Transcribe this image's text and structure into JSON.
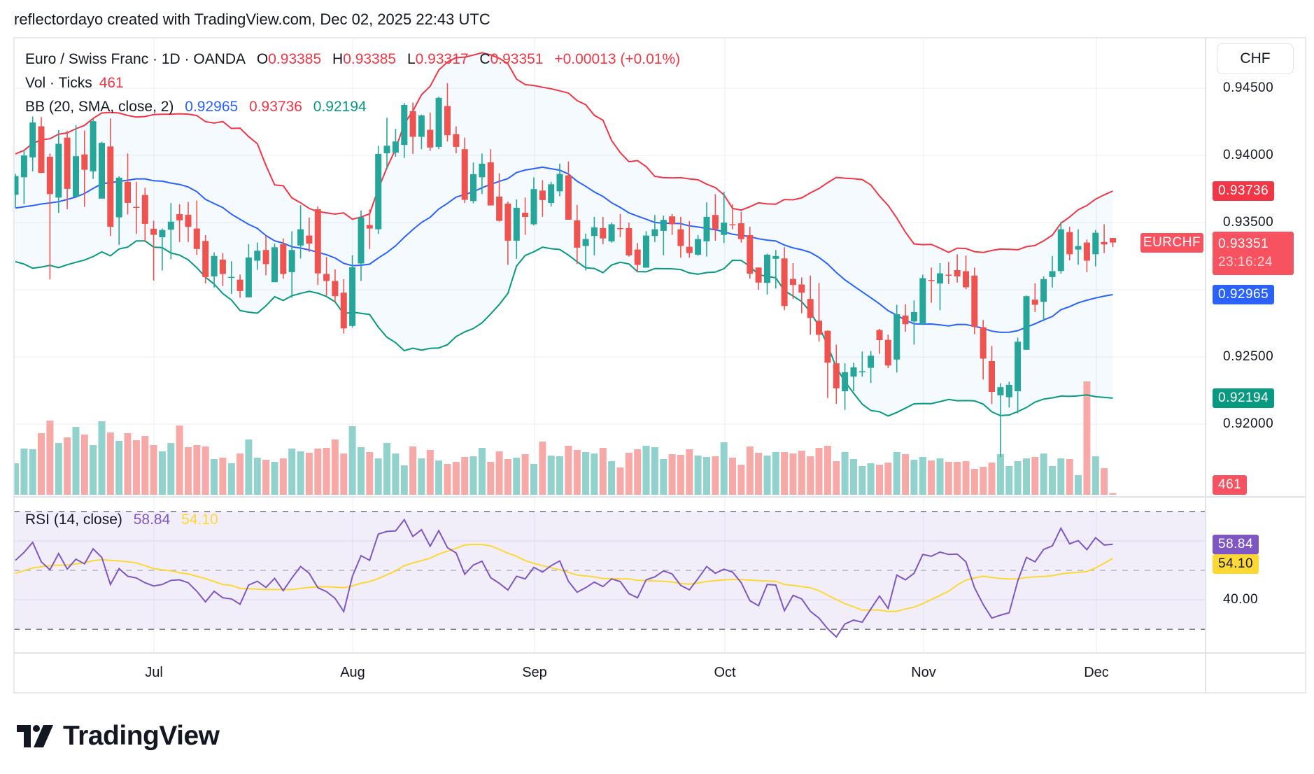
{
  "header": {
    "text": "reflectordayo created with TradingView.com, Dec 02, 2025 22:43 UTC"
  },
  "legend": {
    "symbol": "Euro / Swiss Franc · 1D · OANDA",
    "o_label": "O",
    "o": "0.93385",
    "h_label": "H",
    "h": "0.93385",
    "l_label": "L",
    "l": "0.93317",
    "c_label": "C",
    "c": "0.93351",
    "change": "+0.00013 (+0.01%)",
    "vol_label": "Vol · Ticks",
    "vol": "461",
    "bb_label": "BB (20, SMA, close, 2)",
    "bb_basis": "0.92965",
    "bb_upper": "0.93736",
    "bb_lower": "0.92194",
    "rsi_label": "RSI (14, close)",
    "rsi": "58.84",
    "rsi_ma": "54.10"
  },
  "price_axis": {
    "currency_button": "CHF",
    "ticks": [
      "0.94500",
      "0.94000",
      "0.93500",
      "0.92500",
      "0.92000"
    ],
    "tick_values": [
      0.945,
      0.94,
      0.935,
      0.925,
      0.92
    ],
    "labels": {
      "bb_upper": {
        "text": "0.93736",
        "value": 0.93736,
        "color": "#f23645"
      },
      "current": {
        "text": "0.93351",
        "countdown": "23:16:24",
        "value": 0.93351,
        "color": "#f7525f"
      },
      "symbol_tag": "EURCHF",
      "bb_basis": {
        "text": "0.92965",
        "value": 0.92965,
        "color": "#2962ff"
      },
      "bb_lower": {
        "text": "0.92194",
        "value": 0.92194,
        "color": "#089981"
      },
      "volume": {
        "text": "461",
        "color": "#f7525f"
      }
    }
  },
  "rsi_axis": {
    "ticks": [
      "40.00"
    ],
    "tick_values": [
      40
    ],
    "rsi_label": {
      "text": "58.84",
      "value": 58.84,
      "color": "#7e57c2"
    },
    "ma_label": {
      "text": "54.10",
      "value": 54.1,
      "color": "#fdd835"
    },
    "bands": [
      70,
      50,
      30
    ]
  },
  "time_axis": {
    "months": [
      "Jul",
      "Aug",
      "Sep",
      "Oct",
      "Nov",
      "Dec"
    ]
  },
  "logo": {
    "text": "TradingView"
  },
  "colors": {
    "up": "#26a69a",
    "down": "#ef5350",
    "vol_up": "#92d2cc",
    "vol_down": "#f7a9a7",
    "bb_upper": "#f23645",
    "bb_basis": "#2962ff",
    "bb_lower": "#089981",
    "rsi": "#7e57c2",
    "rsi_ma": "#fdd835"
  },
  "chart_data": {
    "type": "candlestick",
    "symbol": "EURCHF",
    "interval": "1D",
    "ylim": [
      0.9165,
      0.9495
    ],
    "grid": true,
    "ohlc": [
      [
        0.93707,
        0.93863,
        0.93612,
        0.93846
      ],
      [
        0.93837,
        0.94037,
        0.93638,
        0.93999
      ],
      [
        0.93985,
        0.94289,
        0.93881,
        0.94245
      ],
      [
        0.94216,
        0.94285,
        0.93869,
        0.93869
      ],
      [
        0.9399,
        0.94014,
        0.93077,
        0.93712
      ],
      [
        0.93686,
        0.94188,
        0.93572,
        0.94086
      ],
      [
        0.94132,
        0.94181,
        0.93599,
        0.93751
      ],
      [
        0.93693,
        0.94224,
        0.93693,
        0.93994
      ],
      [
        0.94007,
        0.94185,
        0.93617,
        0.93893
      ],
      [
        0.93881,
        0.94271,
        0.93825,
        0.94254
      ],
      [
        0.93678,
        0.94101,
        0.93678,
        0.94093
      ],
      [
        0.94066,
        0.94275,
        0.934,
        0.93468
      ],
      [
        0.93539,
        0.93843,
        0.93334,
        0.93834
      ],
      [
        0.93803,
        0.94014,
        0.9356,
        0.93646
      ],
      [
        0.93617,
        0.93803,
        0.93415,
        0.93612
      ],
      [
        0.93705,
        0.93759,
        0.93355,
        0.9349
      ],
      [
        0.93454,
        0.93514,
        0.93068,
        0.93408
      ],
      [
        0.93391,
        0.93455,
        0.93143,
        0.93445
      ],
      [
        0.93447,
        0.93645,
        0.93226,
        0.93507
      ],
      [
        0.93563,
        0.93636,
        0.93355,
        0.93516
      ],
      [
        0.93558,
        0.93653,
        0.93355,
        0.93468
      ],
      [
        0.93455,
        0.93664,
        0.93259,
        0.93303
      ],
      [
        0.93363,
        0.93407,
        0.93047,
        0.93094
      ],
      [
        0.93099,
        0.93278,
        0.93016,
        0.93251
      ],
      [
        0.93224,
        0.93273,
        0.93027,
        0.93117
      ],
      [
        0.93091,
        0.93212,
        0.92969,
        0.93096
      ],
      [
        0.93075,
        0.93113,
        0.9294,
        0.9299
      ],
      [
        0.92943,
        0.93339,
        0.92943,
        0.9324
      ],
      [
        0.93216,
        0.93351,
        0.93148,
        0.9329
      ],
      [
        0.93296,
        0.93403,
        0.93108,
        0.93191
      ],
      [
        0.93056,
        0.93343,
        0.93056,
        0.93316
      ],
      [
        0.93339,
        0.93382,
        0.93082,
        0.93117
      ],
      [
        0.93131,
        0.93435,
        0.9294,
        0.93296
      ],
      [
        0.93329,
        0.93629,
        0.93233,
        0.9345
      ],
      [
        0.93403,
        0.93537,
        0.93282,
        0.93343
      ],
      [
        0.93599,
        0.9362,
        0.93035,
        0.93122
      ],
      [
        0.93117,
        0.93244,
        0.92955,
        0.93065
      ],
      [
        0.93065,
        0.93152,
        0.92908,
        0.92952
      ],
      [
        0.92978,
        0.93079,
        0.92674,
        0.92712
      ],
      [
        0.9273,
        0.93256,
        0.92718,
        0.93167
      ],
      [
        0.93195,
        0.93589,
        0.93065,
        0.93539
      ],
      [
        0.93481,
        0.93598,
        0.93303,
        0.93455
      ],
      [
        0.9345,
        0.94072,
        0.93415,
        0.94011
      ],
      [
        0.94016,
        0.9428,
        0.93898,
        0.94072
      ],
      [
        0.9402,
        0.94198,
        0.9399,
        0.94103
      ],
      [
        0.94077,
        0.94389,
        0.93981,
        0.94375
      ],
      [
        0.94329,
        0.94393,
        0.94011,
        0.94138
      ],
      [
        0.94138,
        0.94303,
        0.94046,
        0.94297
      ],
      [
        0.9419,
        0.94318,
        0.94033,
        0.94058
      ],
      [
        0.94063,
        0.94436,
        0.94046,
        0.94428
      ],
      [
        0.94367,
        0.94537,
        0.94103,
        0.9415
      ],
      [
        0.94158,
        0.94216,
        0.94016,
        0.94063
      ],
      [
        0.94046,
        0.94132,
        0.93646,
        0.93669
      ],
      [
        0.9366,
        0.93947,
        0.93643,
        0.9386
      ],
      [
        0.93837,
        0.94014,
        0.93712,
        0.93938
      ],
      [
        0.93948,
        0.94046,
        0.93627,
        0.93627
      ],
      [
        0.93693,
        0.93867,
        0.93507,
        0.93513
      ],
      [
        0.93641,
        0.93655,
        0.93185,
        0.93365
      ],
      [
        0.93365,
        0.93672,
        0.9323,
        0.9361
      ],
      [
        0.93573,
        0.93686,
        0.93408,
        0.93542
      ],
      [
        0.93487,
        0.93836,
        0.93478,
        0.93749
      ],
      [
        0.93738,
        0.93815,
        0.93542,
        0.93667
      ],
      [
        0.93646,
        0.93803,
        0.9362,
        0.93785
      ],
      [
        0.93733,
        0.93938,
        0.93695,
        0.93862
      ],
      [
        0.93851,
        0.93954,
        0.93521,
        0.93521
      ],
      [
        0.93516,
        0.93632,
        0.93191,
        0.93313
      ],
      [
        0.93325,
        0.93417,
        0.93143,
        0.93377
      ],
      [
        0.934,
        0.93542,
        0.93256,
        0.93464
      ],
      [
        0.93459,
        0.93542,
        0.93339,
        0.93382
      ],
      [
        0.9336,
        0.93499,
        0.93351,
        0.93487
      ],
      [
        0.93459,
        0.93563,
        0.93391,
        0.93454
      ],
      [
        0.93459,
        0.93499,
        0.93247,
        0.93256
      ],
      [
        0.93299,
        0.93348,
        0.93129,
        0.93185
      ],
      [
        0.93164,
        0.93435,
        0.93164,
        0.93403
      ],
      [
        0.934,
        0.93556,
        0.93355,
        0.9345
      ],
      [
        0.93438,
        0.93551,
        0.93256,
        0.9352
      ],
      [
        0.93546,
        0.93563,
        0.93408,
        0.93487
      ],
      [
        0.9345,
        0.93542,
        0.93238,
        0.93325
      ],
      [
        0.9332,
        0.93511,
        0.93238,
        0.93273
      ],
      [
        0.93261,
        0.93407,
        0.93252,
        0.93377
      ],
      [
        0.9336,
        0.9365,
        0.93247,
        0.93542
      ],
      [
        0.93556,
        0.93711,
        0.93365,
        0.9345
      ],
      [
        0.93408,
        0.93728,
        0.93348,
        0.93499
      ],
      [
        0.93487,
        0.93636,
        0.9345,
        0.93481
      ],
      [
        0.93495,
        0.9358,
        0.93351,
        0.93377
      ],
      [
        0.93407,
        0.93469,
        0.93082,
        0.9312
      ],
      [
        0.93165,
        0.93165,
        0.93,
        0.93053
      ],
      [
        0.93051,
        0.93268,
        0.92964,
        0.93261
      ],
      [
        0.9323,
        0.93296,
        0.93009,
        0.93251
      ],
      [
        0.93233,
        0.93316,
        0.92848,
        0.92879
      ],
      [
        0.9308,
        0.93198,
        0.92931,
        0.93035
      ],
      [
        0.93039,
        0.93091,
        0.92825,
        0.92978
      ],
      [
        0.92931,
        0.93105,
        0.92665,
        0.9279
      ],
      [
        0.9277,
        0.93051,
        0.92613,
        0.92665
      ],
      [
        0.92695,
        0.92697,
        0.92193,
        0.92457
      ],
      [
        0.92452,
        0.92591,
        0.9215,
        0.92266
      ],
      [
        0.92245,
        0.92452,
        0.92106,
        0.92386
      ],
      [
        0.92353,
        0.92457,
        0.92245,
        0.92422
      ],
      [
        0.92386,
        0.9254,
        0.92353,
        0.92393
      ],
      [
        0.92419,
        0.92544,
        0.92306,
        0.92509
      ],
      [
        0.927,
        0.92709,
        0.92523,
        0.92625
      ],
      [
        0.92627,
        0.92665,
        0.92417,
        0.92436
      ],
      [
        0.9248,
        0.92888,
        0.92384,
        0.92818
      ],
      [
        0.92808,
        0.92891,
        0.92688,
        0.92744
      ],
      [
        0.92764,
        0.92921,
        0.92591,
        0.92834
      ],
      [
        0.92744,
        0.93112,
        0.92744,
        0.93086
      ],
      [
        0.93073,
        0.93165,
        0.92903,
        0.93065
      ],
      [
        0.93047,
        0.93198,
        0.92848,
        0.93122
      ],
      [
        0.93112,
        0.93207,
        0.93042,
        0.93105
      ],
      [
        0.93146,
        0.93264,
        0.93053,
        0.93099
      ],
      [
        0.93138,
        0.93254,
        0.93004,
        0.93018
      ],
      [
        0.93105,
        0.93165,
        0.92669,
        0.92723
      ],
      [
        0.92721,
        0.92775,
        0.92332,
        0.92487
      ],
      [
        0.92469,
        0.92582,
        0.9215,
        0.9224
      ],
      [
        0.92214,
        0.92304,
        0.91755,
        0.92275
      ],
      [
        0.922,
        0.92315,
        0.92124,
        0.92292
      ],
      [
        0.92245,
        0.92643,
        0.92079,
        0.92613
      ],
      [
        0.92553,
        0.92957,
        0.92553,
        0.92952
      ],
      [
        0.92926,
        0.93047,
        0.92834,
        0.92888
      ],
      [
        0.92909,
        0.93099,
        0.92766,
        0.93079
      ],
      [
        0.93094,
        0.93251,
        0.93016,
        0.93138
      ],
      [
        0.93139,
        0.93507,
        0.9312,
        0.9345
      ],
      [
        0.93429,
        0.93468,
        0.93218,
        0.93264
      ],
      [
        0.93299,
        0.9345,
        0.93186,
        0.93325
      ],
      [
        0.93351,
        0.93374,
        0.93131,
        0.93216
      ],
      [
        0.93264,
        0.93445,
        0.93174,
        0.93424
      ],
      [
        0.93355,
        0.93487,
        0.93273,
        0.93337
      ],
      [
        0.93385,
        0.93385,
        0.93317,
        0.93351
      ]
    ],
    "volume": [
      8330,
      12210,
      12030,
      16280,
      19610,
      13690,
      15170,
      17950,
      15910,
      13140,
      19430,
      16470,
      14250,
      16280,
      14430,
      15540,
      13140,
      11470,
      13690,
      18320,
      12580,
      13140,
      12770,
      9440,
      9810,
      8330,
      10920,
      14620,
      9810,
      9250,
      8700,
      9620,
      12210,
      11470,
      11100,
      12210,
      12400,
      14620,
      10920,
      18130,
      12580,
      11290,
      9620,
      13690,
      10920,
      7770,
      12770,
      9620,
      11840,
      9070,
      8140,
      8700,
      9990,
      10180,
      12400,
      8700,
      11470,
      9440,
      9810,
      10730,
      8140,
      14060,
      10360,
      10180,
      12950,
      11840,
      11290,
      10920,
      12400,
      8880,
      7220,
      11100,
      12030,
      12950,
      12580,
      9440,
      10730,
      10550,
      12030,
      10360,
      9990,
      10180,
      13880,
      9810,
      7960,
      12770,
      11100,
      10360,
      11290,
      11290,
      10920,
      11660,
      10180,
      12400,
      12950,
      8880,
      11290,
      9440,
      7590,
      8330,
      7960,
      8510,
      11290,
      10730,
      9250,
      9990,
      9070,
      9620,
      8700,
      8700,
      8880,
      6850,
      7400,
      8510,
      10730,
      7590,
      8880,
      9620,
      9990,
      10920,
      7590,
      9620,
      9440,
      5180,
      29970,
      10180,
      7030,
      461
    ],
    "bollinger": {
      "length": 20,
      "mult": 2,
      "upper_leading": [
        0.94011,
        0.94037,
        0.94089,
        0.94115,
        0.94124,
        0.94158,
        0.94167,
        0.94198,
        0.94223,
        0.94275,
        0.94315,
        0.9432,
        0.94315,
        0.94297,
        0.94285,
        0.94289,
        0.94303,
        0.94306,
        0.94306
      ],
      "basis_leading": [
        0.93608,
        0.93617,
        0.93626,
        0.93638,
        0.93646,
        0.93655,
        0.93672,
        0.9369,
        0.93716,
        0.93754,
        0.93789,
        0.93797,
        0.93806,
        0.93815,
        0.93825,
        0.93825,
        0.93811,
        0.93808,
        0.93794
      ],
      "lower_leading": [
        0.93209,
        0.93191,
        0.9316,
        0.93169,
        0.93181,
        0.93164,
        0.93186,
        0.93204,
        0.93221,
        0.93247,
        0.93282,
        0.93252,
        0.93303,
        0.93317,
        0.93363,
        0.93363,
        0.93317,
        0.93313,
        0.93273
      ]
    },
    "rsi": {
      "length": 14,
      "ylim": [
        22,
        75
      ],
      "values": [
        53.4,
        56.1,
        59.5,
        52.9,
        50.2,
        55.7,
        50.4,
        53.8,
        52.2,
        57.3,
        54.4,
        45.2,
        50.6,
        48.0,
        47.4,
        45.8,
        44.7,
        45.2,
        46.6,
        46.8,
        45.8,
        42.9,
        39.3,
        42.9,
        40.7,
        40.3,
        38.5,
        45.0,
        46.3,
        44.2,
        47.3,
        43.1,
        47.4,
        51.3,
        49.0,
        44.1,
        42.8,
        40.5,
        36.0,
        47.9,
        55.0,
        53.4,
        62.3,
        63.2,
        63.4,
        67.2,
        61.5,
        63.8,
        58.2,
        63.5,
        57.7,
        55.9,
        48.7,
        51.8,
        53.1,
        47.5,
        45.6,
        43.3,
        48.0,
        47.1,
        51.0,
        49.4,
        51.6,
        53.2,
        46.3,
        42.6,
        44.1,
        46.0,
        44.5,
        47.1,
        46.2,
        42.1,
        40.7,
        46.8,
        47.8,
        49.8,
        48.8,
        44.9,
        43.4,
        47.2,
        51.3,
        49.0,
        50.4,
        49.4,
        45.8,
        39.7,
        38.0,
        45.2,
        45.0,
        36.3,
        41.5,
        40.3,
        36.1,
        33.8,
        30.2,
        27.4,
        31.8,
        33.1,
        32.4,
        36.9,
        41.3,
        37.1,
        48.4,
        46.8,
        49.0,
        55.4,
        54.8,
        56.2,
        55.4,
        55.5,
        52.9,
        44.1,
        38.4,
        33.8,
        34.8,
        35.6,
        46.4,
        54.4,
        52.9,
        57.1,
        58.3,
        64.3,
        59.0,
        60.1,
        57.0,
        61.1,
        58.6,
        58.84
      ],
      "ma": [
        49.0,
        49.9,
        50.8,
        51.2,
        51.6,
        51.7,
        51.8,
        52.2,
        52.6,
        53.3,
        53.6,
        53.4,
        53.2,
        52.9,
        52.5,
        51.6,
        50.6,
        50.2,
        49.8,
        49.2,
        48.8,
        48.0,
        47.2,
        46.2,
        45.2,
        44.9,
        43.9,
        43.8,
        43.6,
        43.5,
        43.5,
        43.5,
        43.5,
        43.9,
        44.2,
        44.4,
        44.5,
        44.3,
        44.1,
        44.7,
        45.6,
        46.2,
        47.2,
        48.5,
        49.8,
        51.6,
        52.5,
        53.3,
        54.1,
        55.5,
        56.5,
        57.5,
        58.6,
        58.8,
        58.8,
        58.3,
        57.1,
        55.8,
        54.8,
        53.3,
        52.4,
        51.6,
        50.9,
        50.2,
        49.3,
        48.4,
        48.1,
        47.8,
        47.2,
        47.2,
        47.1,
        47.1,
        46.6,
        46.5,
        46.4,
        46.3,
        46.0,
        45.5,
        45.3,
        45.7,
        46.2,
        46.5,
        46.8,
        46.9,
        46.9,
        46.7,
        46.5,
        46.4,
        46.3,
        45.2,
        44.9,
        44.5,
        44.1,
        43.1,
        41.6,
        40.1,
        38.7,
        37.6,
        36.5,
        36.5,
        36.5,
        36.0,
        36.1,
        36.9,
        37.5,
        38.7,
        40.1,
        41.5,
        42.9,
        45.0,
        46.7,
        47.4,
        48.0,
        47.6,
        47.2,
        47.1,
        47.1,
        47.6,
        47.8,
        47.9,
        48.2,
        48.8,
        49.1,
        49.3,
        49.6,
        50.8,
        52.4,
        54.1
      ]
    }
  }
}
